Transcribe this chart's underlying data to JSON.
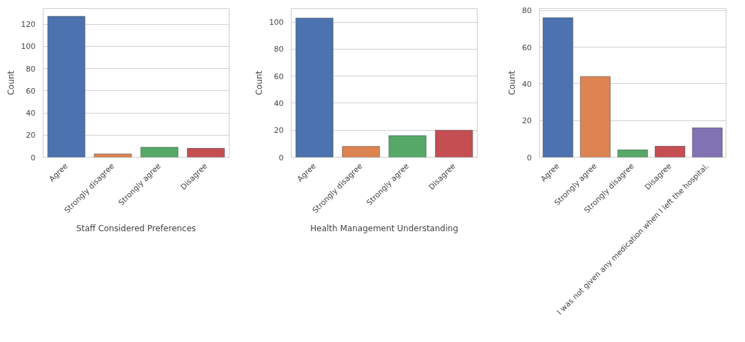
{
  "chart_data": [
    {
      "type": "bar",
      "xlabel": "Staff Considered Preferences",
      "ylabel": "Count",
      "categories": [
        "Agree",
        "Strongly disagree",
        "Strongly agree",
        "Disagree"
      ],
      "values": [
        127,
        3,
        9,
        8
      ],
      "colors": [
        "#4c72b0",
        "#dd8452",
        "#55a868",
        "#c44e52"
      ],
      "ylim": [
        0,
        134
      ],
      "yticks": [
        0,
        20,
        40,
        60,
        80,
        100,
        120
      ],
      "grid": "y"
    },
    {
      "type": "bar",
      "xlabel": "Health Management Understanding",
      "ylabel": "Count",
      "categories": [
        "Agree",
        "Strongly disagree",
        "Strongly agree",
        "Disagree"
      ],
      "values": [
        103,
        8,
        16,
        20
      ],
      "colors": [
        "#4c72b0",
        "#dd8452",
        "#55a868",
        "#c44e52"
      ],
      "ylim": [
        0,
        110
      ],
      "yticks": [
        0,
        20,
        40,
        60,
        80,
        100
      ],
      "grid": "y"
    },
    {
      "type": "bar",
      "ylabel": "Count",
      "categories": [
        "Agree",
        "Strongly agree",
        "Strongly disagree",
        "Disagree",
        "I was not given any medication when I left the hospital."
      ],
      "values": [
        76,
        44,
        4,
        6,
        16
      ],
      "colors": [
        "#4c72b0",
        "#dd8452",
        "#55a868",
        "#c44e52",
        "#8172b3"
      ],
      "ylim": [
        0,
        81
      ],
      "yticks": [
        0,
        20,
        40,
        60,
        80
      ],
      "grid": "y"
    }
  ]
}
